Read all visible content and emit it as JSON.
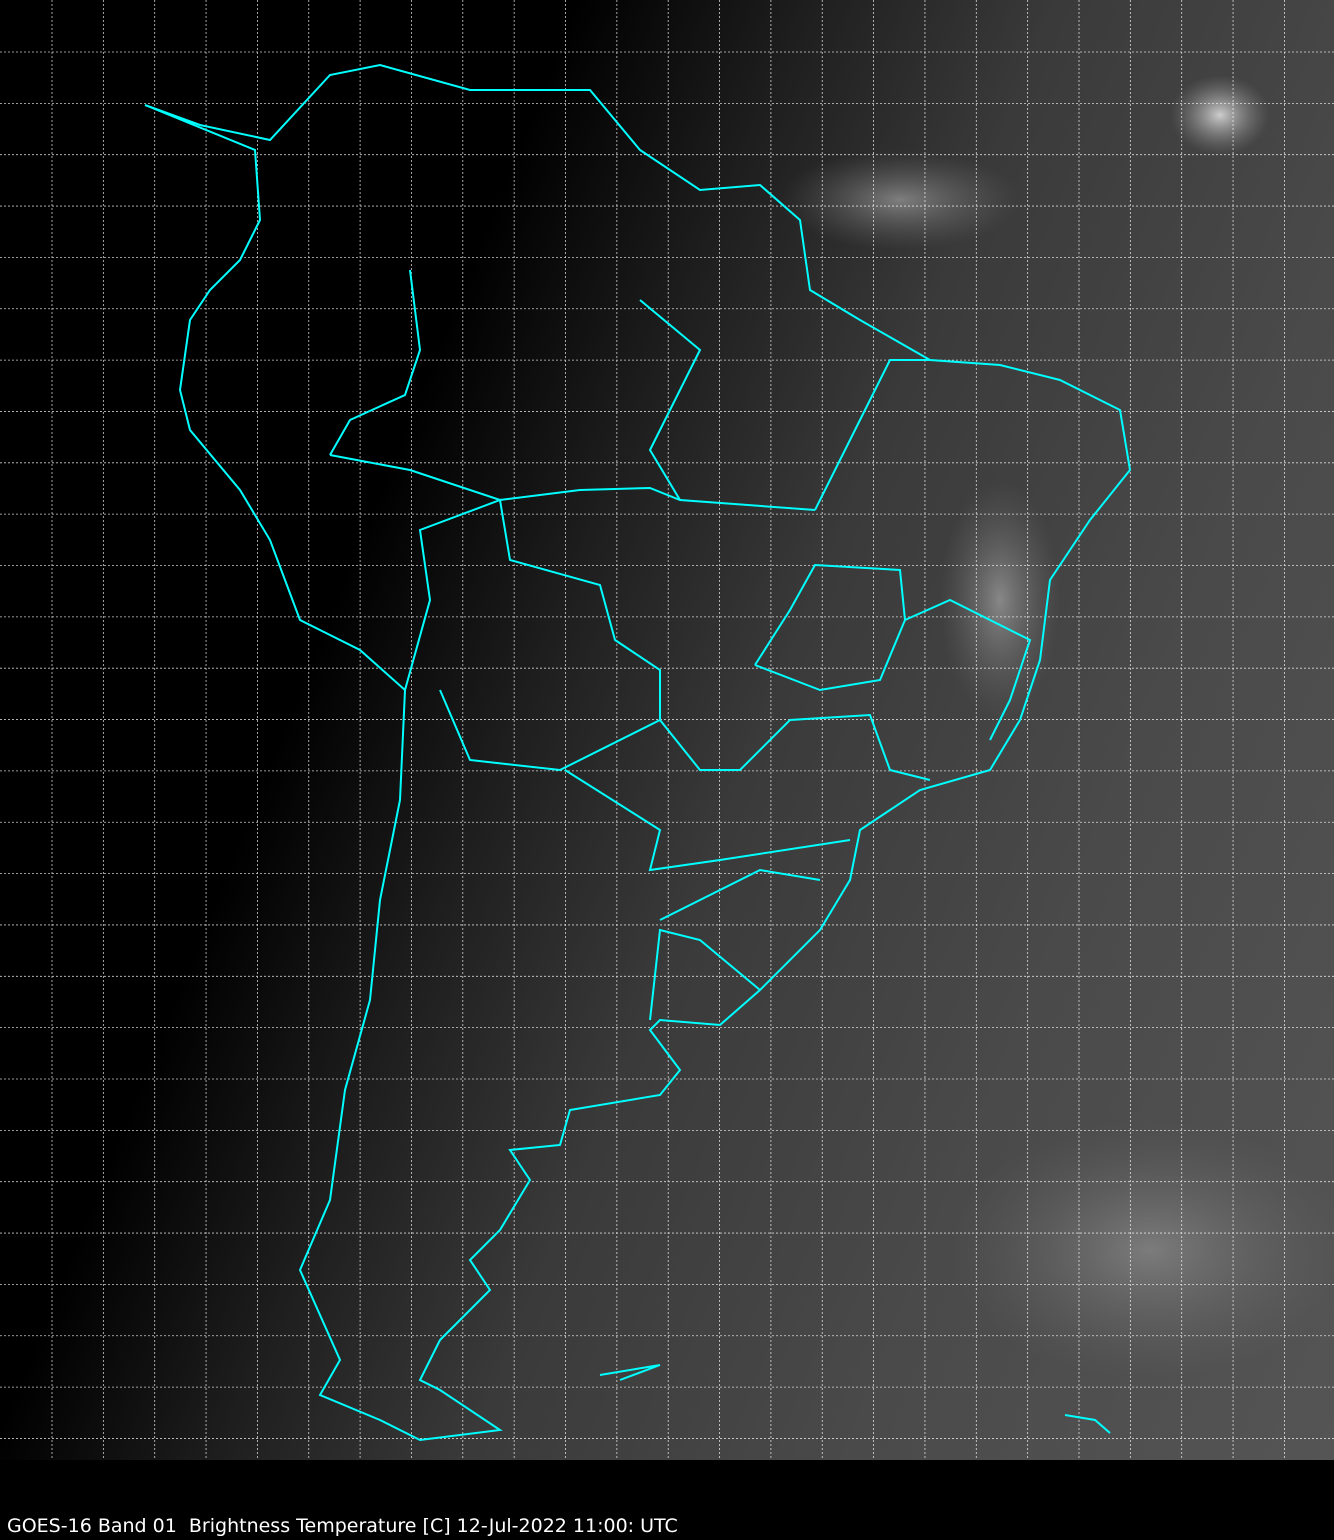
{
  "caption": "GOES-16 Band 01  Brightness Temperature [C] 12-Jul-2022 11:00: UTC",
  "colors": {
    "coastline": "#00ffff",
    "grid": "#ffffff",
    "background": "#000000"
  }
}
